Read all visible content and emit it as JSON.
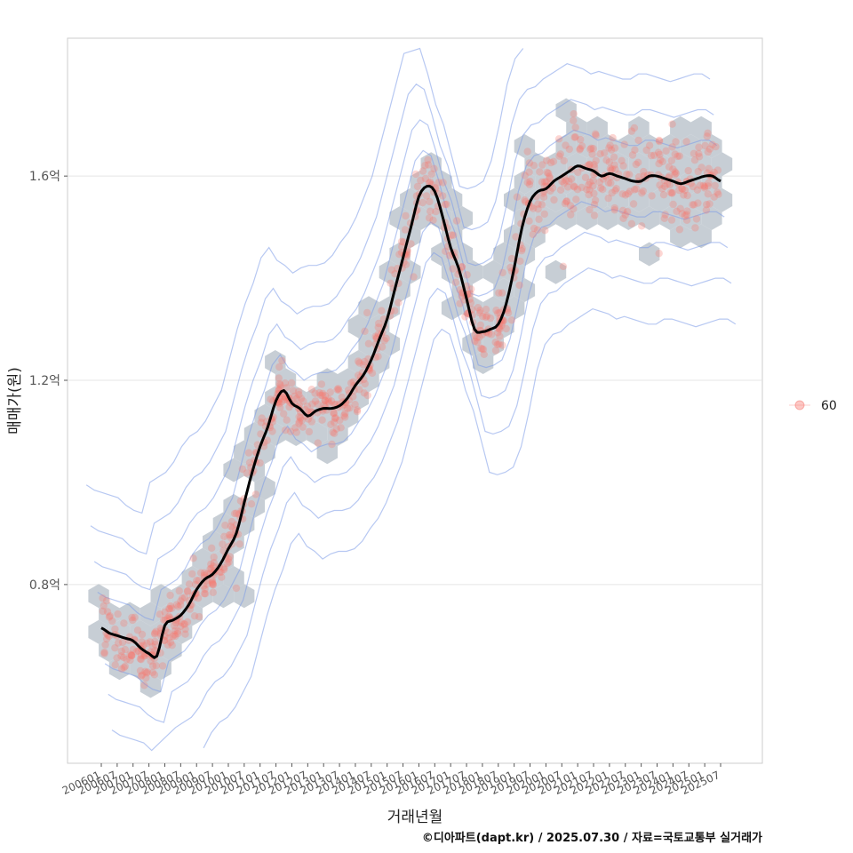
{
  "chart_data": {
    "type": "scatter",
    "title": "",
    "xlabel": "거래년월",
    "ylabel": "매매가(원)",
    "caption": "©디아파트(dapt.kr) / 2025.07.30 / 자료=국토교통부 실거래가",
    "x_range": [
      "2006-01",
      "2025-07"
    ],
    "ylim": [
      0.45,
      1.87
    ],
    "y_ticks": [
      {
        "value": 0.8,
        "label": "0.8억"
      },
      {
        "value": 1.2,
        "label": "1.2억"
      },
      {
        "value": 1.6,
        "label": "1.6억"
      }
    ],
    "x_ticks": [
      "200601",
      "200607",
      "200701",
      "200707",
      "200801",
      "200807",
      "200901",
      "200907",
      "201001",
      "201007",
      "201101",
      "201107",
      "201201",
      "201207",
      "201301",
      "201307",
      "201401",
      "201407",
      "201501",
      "201507",
      "201601",
      "201607",
      "201701",
      "201707",
      "201801",
      "201807",
      "201901",
      "201907",
      "202001",
      "202007",
      "202101",
      "202107",
      "202201",
      "202207",
      "202301",
      "202307",
      "202401",
      "202407",
      "202501",
      "202507"
    ],
    "grid": true,
    "legend": {
      "position": "right",
      "entries": [
        {
          "label": "60",
          "color": "#F8766D"
        }
      ]
    },
    "colors": {
      "points": "#F8766D",
      "trend": "#000000",
      "contour": "#7B9BE8",
      "hex": "#C4CBD3",
      "grid": "#E5E5E5"
    },
    "trend_series": {
      "name": "",
      "x": [
        "2006-01",
        "2006-04",
        "2006-07",
        "2006-10",
        "2007-01",
        "2007-04",
        "2007-07",
        "2007-10",
        "2008-01",
        "2008-04",
        "2008-07",
        "2008-10",
        "2009-01",
        "2009-04",
        "2009-07",
        "2009-10",
        "2010-01",
        "2010-04",
        "2010-07",
        "2010-10",
        "2011-01",
        "2011-04",
        "2011-07",
        "2011-10",
        "2012-01",
        "2012-04",
        "2012-07",
        "2012-10",
        "2013-01",
        "2013-04",
        "2013-07",
        "2013-10",
        "2014-01",
        "2014-04",
        "2014-07",
        "2014-10",
        "2015-01",
        "2015-04",
        "2015-07",
        "2015-10",
        "2016-01",
        "2016-04",
        "2016-07",
        "2016-10",
        "2017-01",
        "2017-04",
        "2017-07",
        "2017-10",
        "2018-01",
        "2018-04",
        "2018-07",
        "2018-10",
        "2019-01",
        "2019-04",
        "2019-07",
        "2019-10",
        "2020-01",
        "2020-04",
        "2020-07",
        "2020-10",
        "2021-01",
        "2021-04",
        "2021-07",
        "2021-10",
        "2022-01",
        "2022-04",
        "2022-07",
        "2022-10",
        "2023-01",
        "2023-04",
        "2023-07",
        "2023-10",
        "2024-01",
        "2024-04",
        "2024-07",
        "2024-10",
        "2025-01",
        "2025-04",
        "2025-07"
      ],
      "y": [
        0.715,
        0.705,
        0.7,
        0.695,
        0.69,
        0.675,
        0.665,
        0.66,
        0.72,
        0.73,
        0.74,
        0.76,
        0.79,
        0.81,
        0.82,
        0.84,
        0.87,
        0.9,
        0.96,
        1.02,
        1.07,
        1.11,
        1.16,
        1.18,
        1.155,
        1.145,
        1.13,
        1.14,
        1.145,
        1.145,
        1.15,
        1.165,
        1.19,
        1.21,
        1.24,
        1.28,
        1.32,
        1.38,
        1.44,
        1.5,
        1.56,
        1.58,
        1.57,
        1.52,
        1.46,
        1.42,
        1.36,
        1.3,
        1.295,
        1.3,
        1.31,
        1.35,
        1.42,
        1.5,
        1.55,
        1.57,
        1.575,
        1.59,
        1.6,
        1.61,
        1.62,
        1.615,
        1.61,
        1.6,
        1.605,
        1.6,
        1.595,
        1.59,
        1.59,
        1.6,
        1.6,
        1.595,
        1.59,
        1.585,
        1.59,
        1.595,
        1.6,
        1.6,
        1.59
      ]
    }
  }
}
